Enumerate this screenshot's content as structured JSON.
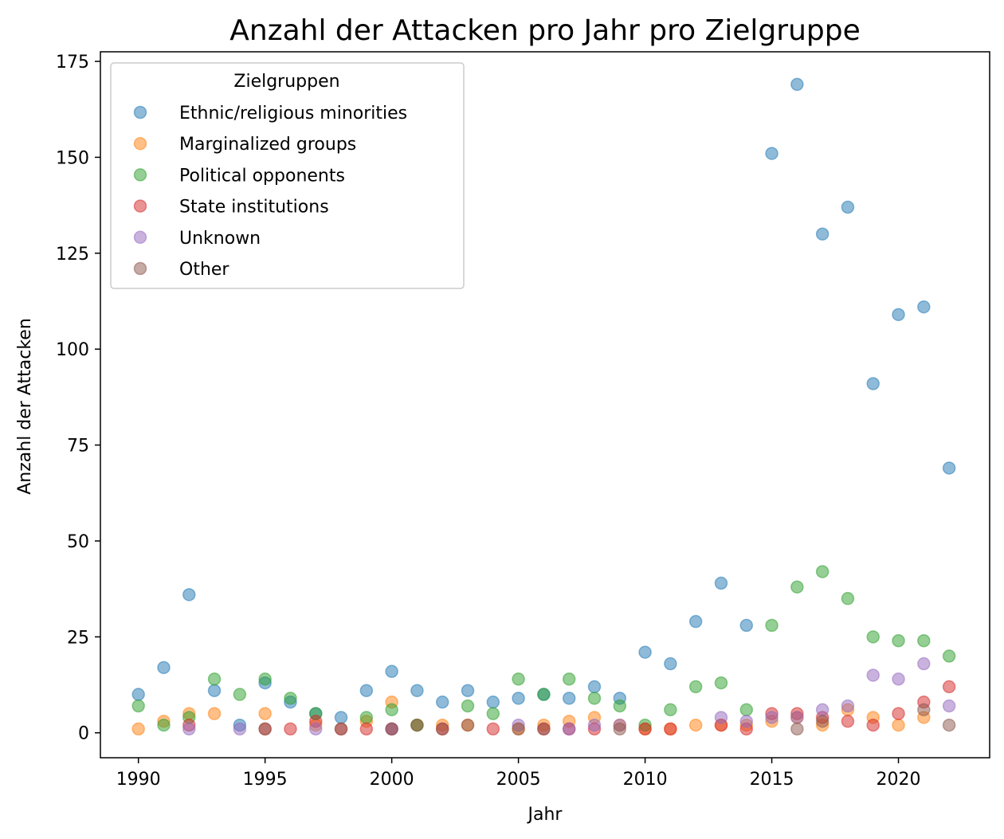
{
  "chart_data": {
    "type": "scatter",
    "title": "Anzahl der Attacken pro Jahr pro Zielgruppe",
    "xlabel": "Jahr",
    "ylabel": "Anzahl der Attacken",
    "xlim": [
      1988.5,
      2023.6
    ],
    "ylim": [
      -6.5,
      177.5
    ],
    "xticks": [
      1990,
      1995,
      2000,
      2005,
      2010,
      2015,
      2020
    ],
    "yticks": [
      0,
      25,
      50,
      75,
      100,
      125,
      150,
      175
    ],
    "grid": false,
    "legend": {
      "title": "Zielgruppen",
      "placement": "top-left"
    },
    "series": [
      {
        "name": "Ethnic/religious minorities",
        "color": "#1f77b4",
        "points": [
          [
            1990,
            10
          ],
          [
            1991,
            17
          ],
          [
            1992,
            36
          ],
          [
            1993,
            11
          ],
          [
            1994,
            2
          ],
          [
            1995,
            13
          ],
          [
            1996,
            8
          ],
          [
            1997,
            5
          ],
          [
            1998,
            4
          ],
          [
            1999,
            11
          ],
          [
            2000,
            16
          ],
          [
            2001,
            11
          ],
          [
            2002,
            8
          ],
          [
            2003,
            11
          ],
          [
            2004,
            8
          ],
          [
            2005,
            9
          ],
          [
            2006,
            10
          ],
          [
            2007,
            9
          ],
          [
            2008,
            12
          ],
          [
            2009,
            9
          ],
          [
            2010,
            21
          ],
          [
            2011,
            18
          ],
          [
            2012,
            29
          ],
          [
            2013,
            39
          ],
          [
            2014,
            28
          ],
          [
            2015,
            151
          ],
          [
            2016,
            169
          ],
          [
            2017,
            130
          ],
          [
            2018,
            137
          ],
          [
            2019,
            91
          ],
          [
            2020,
            109
          ],
          [
            2021,
            111
          ],
          [
            2022,
            69
          ]
        ]
      },
      {
        "name": "Marginalized groups",
        "color": "#ff7f0e",
        "points": [
          [
            1990,
            1
          ],
          [
            1991,
            3
          ],
          [
            1992,
            5
          ],
          [
            1993,
            5
          ],
          [
            1995,
            5
          ],
          [
            1997,
            2
          ],
          [
            1999,
            3
          ],
          [
            2000,
            8
          ],
          [
            2001,
            2
          ],
          [
            2002,
            2
          ],
          [
            2003,
            2
          ],
          [
            2005,
            1
          ],
          [
            2006,
            2
          ],
          [
            2007,
            3
          ],
          [
            2008,
            4
          ],
          [
            2009,
            2
          ],
          [
            2010,
            1
          ],
          [
            2011,
            1
          ],
          [
            2012,
            2
          ],
          [
            2013,
            2
          ],
          [
            2014,
            2
          ],
          [
            2015,
            3
          ],
          [
            2016,
            4
          ],
          [
            2017,
            2
          ],
          [
            2018,
            6
          ],
          [
            2019,
            4
          ],
          [
            2020,
            2
          ],
          [
            2021,
            4
          ]
        ]
      },
      {
        "name": "Political opponents",
        "color": "#2ca02c",
        "points": [
          [
            1990,
            7
          ],
          [
            1991,
            2
          ],
          [
            1992,
            4
          ],
          [
            1993,
            14
          ],
          [
            1994,
            10
          ],
          [
            1995,
            14
          ],
          [
            1996,
            9
          ],
          [
            1997,
            5
          ],
          [
            1999,
            4
          ],
          [
            2000,
            6
          ],
          [
            2001,
            2
          ],
          [
            2003,
            7
          ],
          [
            2004,
            5
          ],
          [
            2005,
            14
          ],
          [
            2006,
            10
          ],
          [
            2007,
            14
          ],
          [
            2008,
            9
          ],
          [
            2009,
            7
          ],
          [
            2010,
            2
          ],
          [
            2011,
            6
          ],
          [
            2012,
            12
          ],
          [
            2013,
            13
          ],
          [
            2014,
            6
          ],
          [
            2015,
            28
          ],
          [
            2016,
            38
          ],
          [
            2017,
            42
          ],
          [
            2018,
            35
          ],
          [
            2019,
            25
          ],
          [
            2020,
            24
          ],
          [
            2021,
            24
          ],
          [
            2022,
            20
          ]
        ]
      },
      {
        "name": "State institutions",
        "color": "#d62728",
        "points": [
          [
            1992,
            2
          ],
          [
            1995,
            1
          ],
          [
            1996,
            1
          ],
          [
            1997,
            3
          ],
          [
            1998,
            1
          ],
          [
            1999,
            1
          ],
          [
            2000,
            1
          ],
          [
            2002,
            1
          ],
          [
            2004,
            1
          ],
          [
            2006,
            1
          ],
          [
            2007,
            1
          ],
          [
            2008,
            1
          ],
          [
            2010,
            1
          ],
          [
            2011,
            1
          ],
          [
            2013,
            2
          ],
          [
            2014,
            1
          ],
          [
            2015,
            5
          ],
          [
            2016,
            5
          ],
          [
            2017,
            4
          ],
          [
            2018,
            3
          ],
          [
            2019,
            2
          ],
          [
            2020,
            5
          ],
          [
            2021,
            8
          ],
          [
            2022,
            12
          ]
        ]
      },
      {
        "name": "Unknown",
        "color": "#9467bd",
        "points": [
          [
            1992,
            1
          ],
          [
            1994,
            1
          ],
          [
            1997,
            1
          ],
          [
            2000,
            1
          ],
          [
            2005,
            2
          ],
          [
            2007,
            1
          ],
          [
            2008,
            2
          ],
          [
            2009,
            2
          ],
          [
            2013,
            4
          ],
          [
            2014,
            3
          ],
          [
            2015,
            4
          ],
          [
            2016,
            4
          ],
          [
            2017,
            6
          ],
          [
            2018,
            7
          ],
          [
            2019,
            15
          ],
          [
            2020,
            14
          ],
          [
            2021,
            18
          ],
          [
            2022,
            7
          ]
        ]
      },
      {
        "name": "Other",
        "color": "#8c564b",
        "points": [
          [
            1995,
            1
          ],
          [
            1998,
            1
          ],
          [
            2000,
            1
          ],
          [
            2001,
            2
          ],
          [
            2002,
            1
          ],
          [
            2003,
            2
          ],
          [
            2005,
            1
          ],
          [
            2006,
            1
          ],
          [
            2009,
            1
          ],
          [
            2016,
            1
          ],
          [
            2017,
            3
          ],
          [
            2021,
            6
          ],
          [
            2022,
            2
          ]
        ]
      }
    ]
  }
}
